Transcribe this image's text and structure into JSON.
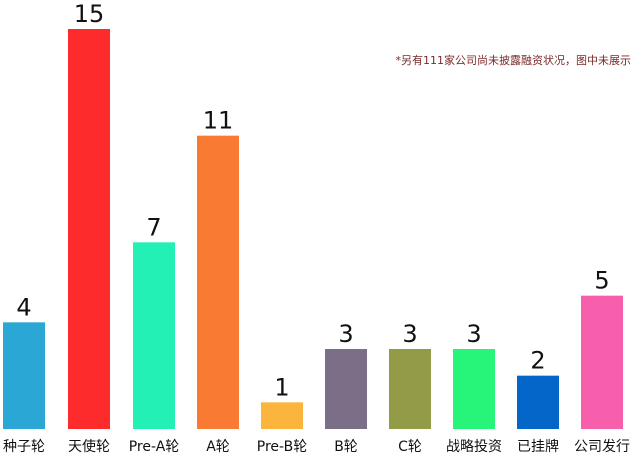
{
  "chart_data": {
    "type": "bar",
    "categories": [
      "种子轮",
      "天使轮",
      "Pre-A轮",
      "A轮",
      "Pre-B轮",
      "B轮",
      "C轮",
      "战略投资",
      "已挂牌",
      "公司发行"
    ],
    "values": [
      4,
      15,
      7,
      11,
      1,
      3,
      3,
      3,
      2,
      5
    ],
    "colors": [
      "#2aa7d4",
      "#fd2b2b",
      "#22f0b4",
      "#f97b33",
      "#fbb43c",
      "#7b6e87",
      "#939b46",
      "#27f57a",
      "#0366c8",
      "#f75fad"
    ],
    "data_labels": [
      "4",
      "15",
      "7",
      "11",
      "1",
      "3",
      "3",
      "3",
      "2",
      "5"
    ],
    "title": "",
    "xlabel": "",
    "ylabel": "",
    "ylim": [
      0,
      15
    ],
    "grid": false,
    "legend": "none"
  },
  "note": "*另有111家公司尚未披露融资状况，图中未展示"
}
